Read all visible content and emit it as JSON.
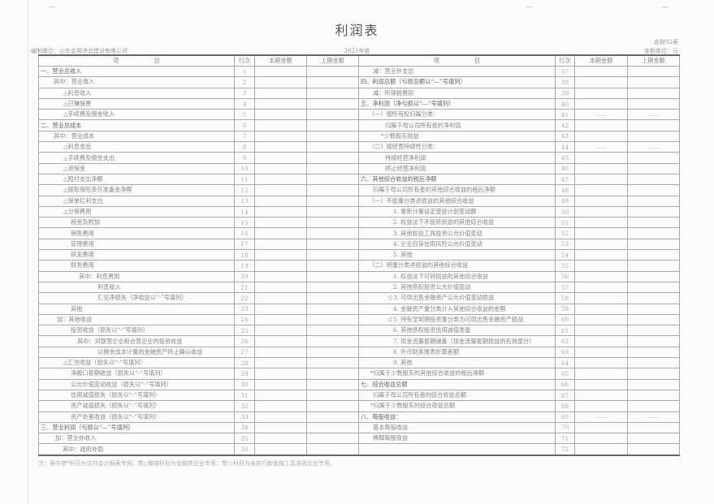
{
  "title": "利润表",
  "company": "编制单位：山东会用济北建设有限公司",
  "period": "2021年度",
  "form_no": "会财02表",
  "unit": "金额单位：元",
  "headers": {
    "item": "项　　　　　　目",
    "line": "行次",
    "current": "本期金额",
    "prior": "上期金额"
  },
  "left_rows": [
    {
      "no": "1",
      "item": "一、营业总收入"
    },
    {
      "no": "2",
      "item": "其中：营业收入"
    },
    {
      "no": "3",
      "item": "△利息收入"
    },
    {
      "no": "4",
      "item": "△已赚保费"
    },
    {
      "no": "5",
      "item": "△手续费及佣金收入"
    },
    {
      "no": "6",
      "item": "二、营业总成本"
    },
    {
      "no": "7",
      "item": "其中：营业成本"
    },
    {
      "no": "8",
      "item": "△利息支出"
    },
    {
      "no": "9",
      "item": "△手续费及佣金支出"
    },
    {
      "no": "10",
      "item": "△退保金"
    },
    {
      "no": "11",
      "item": "△赔付支出净额"
    },
    {
      "no": "12",
      "item": "△提取保险责任准备金净额"
    },
    {
      "no": "13",
      "item": "△保单红利支出"
    },
    {
      "no": "14",
      "item": "△分保费用"
    },
    {
      "no": "15",
      "item": "税金及附加"
    },
    {
      "no": "16",
      "item": "销售费用"
    },
    {
      "no": "17",
      "item": "管理费用"
    },
    {
      "no": "18",
      "item": "研发费用"
    },
    {
      "no": "19",
      "item": "财务费用"
    },
    {
      "no": "20",
      "item": "其中：利息费用"
    },
    {
      "no": "21",
      "item": "利息收入"
    },
    {
      "no": "22",
      "item": "汇兑净损失（净收益以“-”号填列）"
    },
    {
      "no": "23",
      "item": "其他"
    },
    {
      "no": "24",
      "item": "加：其他收益"
    },
    {
      "no": "25",
      "item": "投资收益（损失以“-”号填列）"
    },
    {
      "no": "26",
      "item": "其中：对联营企业和合营企业的投资收益"
    },
    {
      "no": "27",
      "item": "以摊余成本计量的金融资产终止确认收益"
    },
    {
      "no": "28",
      "item": "△汇兑收益（损失以“-”号填列）"
    },
    {
      "no": "29",
      "item": "净敞口套期收益（损失以“-”号填列）"
    },
    {
      "no": "30",
      "item": "公允价值变动收益（损失以“-”号填列）"
    },
    {
      "no": "31",
      "item": "信用减值损失（损失以“-”号填列）"
    },
    {
      "no": "32",
      "item": "资产减值损失（损失以“-”号填列）"
    },
    {
      "no": "33",
      "item": "资产处置收益（损失以“-”号填列）"
    },
    {
      "no": "34",
      "item": "三、营业利润（亏损以“—”号填列）"
    },
    {
      "no": "35",
      "item": "加：营业外收入"
    },
    {
      "no": "36",
      "item": "其中：政府补助"
    }
  ],
  "right_rows": [
    {
      "no": "37",
      "item": "减：营业外支出"
    },
    {
      "no": "38",
      "item": "四、利润总额（亏损总额以“—”号填列）"
    },
    {
      "no": "39",
      "item": "减：所得税费用"
    },
    {
      "no": "40",
      "item": "五、净利润（净亏损以“—”号填列）"
    },
    {
      "no": "41",
      "item": "（一）按所有权归属分类：",
      "current": "——",
      "prior": "——"
    },
    {
      "no": "42",
      "item": "归属于母公司所有者的净利润"
    },
    {
      "no": "43",
      "item": "*少数股东损益"
    },
    {
      "no": "44",
      "item": "（二）按经营持续性分类：",
      "current": "——",
      "prior": "——"
    },
    {
      "no": "45",
      "item": "持续经营净利润"
    },
    {
      "no": "46",
      "item": "终止经营净利润"
    },
    {
      "no": "47",
      "item": "六、其他综合收益的税后净额"
    },
    {
      "no": "48",
      "item": "归属于母公司所有者的其他综合收益的税后净额"
    },
    {
      "no": "49",
      "item": "（一）不能重分类进损益的其他综合收益"
    },
    {
      "no": "50",
      "item": "1. 重新计量设定受益计划变动额"
    },
    {
      "no": "51",
      "item": "2. 权益法下不能转损益的其他综合收益"
    },
    {
      "no": "52",
      "item": "3. 其他权益工具投资公允价值变动"
    },
    {
      "no": "53",
      "item": "4. 企业自身信用风险公允价值变动"
    },
    {
      "no": "54",
      "item": "5. 其他"
    },
    {
      "no": "55",
      "item": "（二）将重分类进损益的其他综合收益"
    },
    {
      "no": "56",
      "item": "1. 权益法下可转损益的其他综合收益"
    },
    {
      "no": "57",
      "item": "2. 其他债权投资公允价值变动"
    },
    {
      "no": "58",
      "item": "☆3. 可供出售金融资产公允价值变动损益"
    },
    {
      "no": "59",
      "item": "4. 金融资产重分类计入其他综合收益的金额"
    },
    {
      "no": "60",
      "item": "☆5. 持有至到期投资重分类为可供出售金融资产损益"
    },
    {
      "no": "61",
      "item": "6. 其他债权投资信用减值准备"
    },
    {
      "no": "62",
      "item": "7. 现金流量套期储备（现金流量套期损益的有效部分）"
    },
    {
      "no": "63",
      "item": "8. 外币财务报表折算差额"
    },
    {
      "no": "64",
      "item": "9. 其他"
    },
    {
      "no": "65",
      "item": "*归属于少数股东的其他综合收益的税后净额"
    },
    {
      "no": "66",
      "item": "七、综合收益总额"
    },
    {
      "no": "67",
      "item": "归属于母公司所有者的综合收益总额"
    },
    {
      "no": "68",
      "item": "*归属于少数股东的综合收益总额"
    },
    {
      "no": "69",
      "item": "八、每股收益：",
      "current": "——",
      "prior": "——"
    },
    {
      "no": "70",
      "item": "基本每股收益"
    },
    {
      "no": "71",
      "item": "稀释每股收益"
    },
    {
      "no": "72",
      "item": ""
    }
  ],
  "note": "注：表中带*科目为合并会计报表专用；带△楷体科目为金融类企业专用；带☆科目为未执行新金融工具准则企业专用。"
}
